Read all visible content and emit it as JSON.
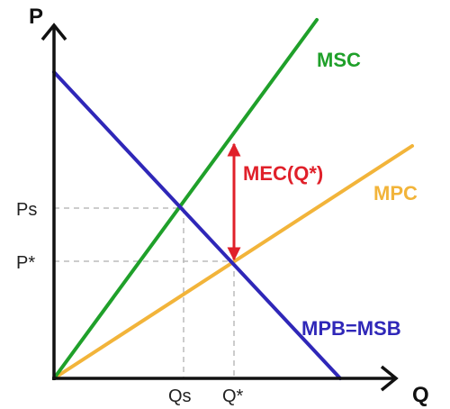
{
  "axes": {
    "y_title": "P",
    "x_title": "Q",
    "y_ticks": [
      "Ps",
      "P*"
    ],
    "x_ticks": [
      "Qs",
      "Q*"
    ]
  },
  "curves": {
    "msc": {
      "label": "MSC",
      "color": "#1fa02a"
    },
    "mpc": {
      "label": "MPC",
      "color": "#f2b43a"
    },
    "mpb": {
      "label": "MPB=MSB",
      "color": "#2f27b8"
    }
  },
  "annotation": {
    "mec_label": "MEC(Q*)",
    "color": "#e0202a"
  }
}
